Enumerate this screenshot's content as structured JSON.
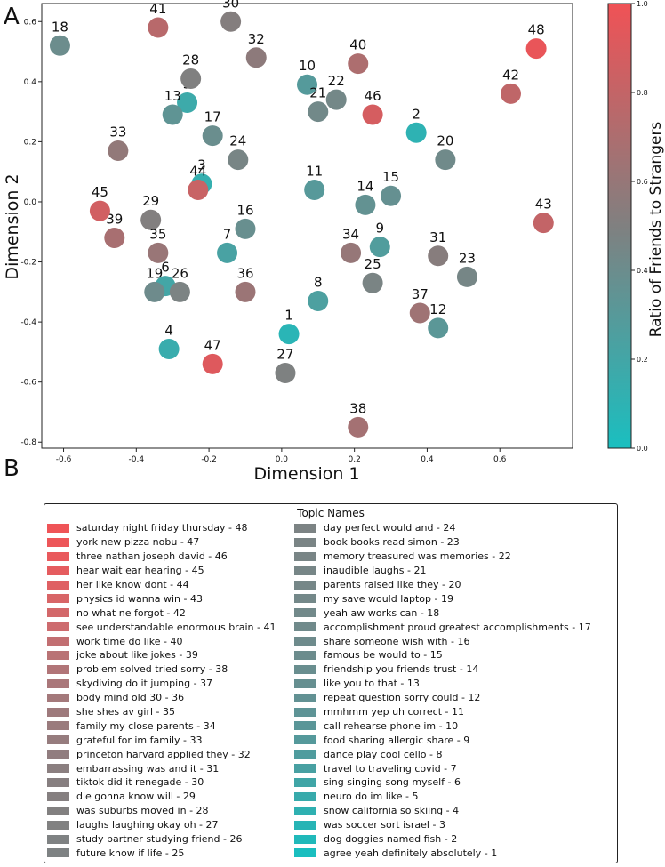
{
  "panel_a_label": "A",
  "panel_b_label": "B",
  "chart_data": {
    "type": "scatter",
    "xlabel": "Dimension 1",
    "ylabel": "Dimension 2",
    "xlim": [
      -0.66,
      0.8
    ],
    "ylim": [
      -0.82,
      0.66
    ],
    "xticks": [
      "-0.6",
      "-0.4",
      "-0.2",
      "0.0",
      "0.2",
      "0.4",
      "0.6"
    ],
    "yticks": [
      "-0.8",
      "-0.6",
      "-0.4",
      "-0.2",
      "0.0",
      "0.2",
      "0.4",
      "0.6"
    ],
    "xtick_values": [
      -0.6,
      -0.4,
      -0.2,
      0.0,
      0.2,
      0.4,
      0.6
    ],
    "ytick_values": [
      -0.8,
      -0.6,
      -0.4,
      -0.2,
      0.0,
      0.2,
      0.4,
      0.6
    ],
    "colorbar": {
      "label": "Ratio of Friends to Strangers",
      "min": 0.0,
      "max": 1.0,
      "ticks": [
        "0.0",
        "0.2",
        "0.4",
        "0.6",
        "0.8",
        "1.0"
      ],
      "tick_values": [
        0.0,
        0.2,
        0.4,
        0.6,
        0.8,
        1.0
      ],
      "low_color": "#1abfc0",
      "mid_color": "#808080",
      "high_color": "#f05256"
    },
    "points": [
      {
        "id": "1",
        "x": 0.02,
        "y": -0.44,
        "ratio": 0.08
      },
      {
        "id": "2",
        "x": 0.37,
        "y": 0.23,
        "ratio": 0.1
      },
      {
        "id": "3",
        "x": -0.22,
        "y": 0.06,
        "ratio": 0.13
      },
      {
        "id": "4",
        "x": -0.31,
        "y": -0.49,
        "ratio": 0.15
      },
      {
        "id": "5",
        "x": -0.26,
        "y": 0.33,
        "ratio": 0.17
      },
      {
        "id": "6",
        "x": -0.32,
        "y": -0.28,
        "ratio": 0.2
      },
      {
        "id": "7",
        "x": -0.15,
        "y": -0.17,
        "ratio": 0.23
      },
      {
        "id": "8",
        "x": 0.1,
        "y": -0.33,
        "ratio": 0.25
      },
      {
        "id": "9",
        "x": 0.27,
        "y": -0.15,
        "ratio": 0.27
      },
      {
        "id": "10",
        "x": 0.07,
        "y": 0.39,
        "ratio": 0.29
      },
      {
        "id": "11",
        "x": 0.09,
        "y": 0.04,
        "ratio": 0.3
      },
      {
        "id": "12",
        "x": 0.43,
        "y": -0.42,
        "ratio": 0.32
      },
      {
        "id": "13",
        "x": -0.3,
        "y": 0.29,
        "ratio": 0.34
      },
      {
        "id": "14",
        "x": 0.23,
        "y": -0.01,
        "ratio": 0.36
      },
      {
        "id": "15",
        "x": 0.3,
        "y": 0.02,
        "ratio": 0.37
      },
      {
        "id": "16",
        "x": -0.1,
        "y": -0.09,
        "ratio": 0.38
      },
      {
        "id": "17",
        "x": -0.19,
        "y": 0.22,
        "ratio": 0.39
      },
      {
        "id": "18",
        "x": -0.61,
        "y": 0.52,
        "ratio": 0.4
      },
      {
        "id": "19",
        "x": -0.35,
        "y": -0.3,
        "ratio": 0.41
      },
      {
        "id": "20",
        "x": 0.45,
        "y": 0.14,
        "ratio": 0.42
      },
      {
        "id": "21",
        "x": 0.1,
        "y": 0.3,
        "ratio": 0.43
      },
      {
        "id": "22",
        "x": 0.15,
        "y": 0.34,
        "ratio": 0.44
      },
      {
        "id": "23",
        "x": 0.51,
        "y": -0.25,
        "ratio": 0.45
      },
      {
        "id": "24",
        "x": -0.12,
        "y": 0.14,
        "ratio": 0.46
      },
      {
        "id": "25",
        "x": 0.25,
        "y": -0.27,
        "ratio": 0.47
      },
      {
        "id": "26",
        "x": -0.28,
        "y": -0.3,
        "ratio": 0.48
      },
      {
        "id": "27",
        "x": 0.01,
        "y": -0.57,
        "ratio": 0.49
      },
      {
        "id": "28",
        "x": -0.25,
        "y": 0.41,
        "ratio": 0.5
      },
      {
        "id": "29",
        "x": -0.36,
        "y": -0.06,
        "ratio": 0.51
      },
      {
        "id": "30",
        "x": -0.14,
        "y": 0.6,
        "ratio": 0.52
      },
      {
        "id": "31",
        "x": 0.43,
        "y": -0.18,
        "ratio": 0.53
      },
      {
        "id": "32",
        "x": -0.07,
        "y": 0.48,
        "ratio": 0.56
      },
      {
        "id": "33",
        "x": -0.45,
        "y": 0.17,
        "ratio": 0.58
      },
      {
        "id": "34",
        "x": 0.19,
        "y": -0.17,
        "ratio": 0.6
      },
      {
        "id": "35",
        "x": -0.34,
        "y": -0.17,
        "ratio": 0.61
      },
      {
        "id": "36",
        "x": -0.1,
        "y": -0.3,
        "ratio": 0.62
      },
      {
        "id": "37",
        "x": 0.38,
        "y": -0.37,
        "ratio": 0.64
      },
      {
        "id": "38",
        "x": 0.21,
        "y": -0.75,
        "ratio": 0.66
      },
      {
        "id": "39",
        "x": -0.46,
        "y": -0.12,
        "ratio": 0.68
      },
      {
        "id": "40",
        "x": 0.21,
        "y": 0.46,
        "ratio": 0.7
      },
      {
        "id": "41",
        "x": -0.34,
        "y": 0.58,
        "ratio": 0.75
      },
      {
        "id": "42",
        "x": 0.63,
        "y": 0.36,
        "ratio": 0.78
      },
      {
        "id": "43",
        "x": 0.72,
        "y": -0.07,
        "ratio": 0.8
      },
      {
        "id": "44",
        "x": -0.23,
        "y": 0.04,
        "ratio": 0.82
      },
      {
        "id": "45",
        "x": -0.5,
        "y": -0.03,
        "ratio": 0.86
      },
      {
        "id": "46",
        "x": 0.25,
        "y": 0.29,
        "ratio": 0.88
      },
      {
        "id": "47",
        "x": -0.19,
        "y": -0.54,
        "ratio": 0.92
      },
      {
        "id": "48",
        "x": 0.7,
        "y": 0.51,
        "ratio": 0.97
      }
    ]
  },
  "legend": {
    "title": "Topic Names",
    "col1": [
      {
        "label": "saturday night friday thursday - 48",
        "color": "#ef5457"
      },
      {
        "label": "york new pizza nobu - 47",
        "color": "#ed5659"
      },
      {
        "label": "three nathan joseph david - 46",
        "color": "#e9595c"
      },
      {
        "label": "hear wait ear hearing - 45",
        "color": "#e55c5f"
      },
      {
        "label": "her like know dont - 44",
        "color": "#df6063"
      },
      {
        "label": "physics id wanna win - 43",
        "color": "#d86567"
      },
      {
        "label": "no what ne forgot - 42",
        "color": "#d3686a"
      },
      {
        "label": "see understandable enormous brain - 41",
        "color": "#cd6b6e"
      },
      {
        "label": "work time do like - 40",
        "color": "#c26f72"
      },
      {
        "label": "joke about like jokes - 39",
        "color": "#b97375"
      },
      {
        "label": "problem solved tried sorry - 38",
        "color": "#b17578"
      },
      {
        "label": "skydiving do it jumping - 37",
        "color": "#aa777a"
      },
      {
        "label": "body mind old 30 - 36",
        "color": "#a4797b"
      },
      {
        "label": "she shes av girl - 35",
        "color": "#9e7a7c"
      },
      {
        "label": "family my close parents - 34",
        "color": "#9a7b7d"
      },
      {
        "label": "grateful for im family - 33",
        "color": "#967c7e"
      },
      {
        "label": "princeton harvard applied they - 32",
        "color": "#917d7f"
      },
      {
        "label": "embarrassing was and it - 31",
        "color": "#8b7f80"
      },
      {
        "label": "tiktok did it renegade - 30",
        "color": "#877f80"
      },
      {
        "label": "die gonna know will - 29",
        "color": "#857f80"
      },
      {
        "label": "was suburbs moved in - 28",
        "color": "#828080"
      },
      {
        "label": "laughs laughing okay oh - 27",
        "color": "#818181"
      },
      {
        "label": "study partner studying friend - 26",
        "color": "#7f8283"
      },
      {
        "label": "future know if life - 25",
        "color": "#7e8283"
      }
    ],
    "col2": [
      {
        "label": "day perfect would and - 24",
        "color": "#7c8384"
      },
      {
        "label": "book books read simon - 23",
        "color": "#7a8485"
      },
      {
        "label": "memory treasured was memories - 22",
        "color": "#798586"
      },
      {
        "label": "inaudible laughs - 21",
        "color": "#778687"
      },
      {
        "label": "parents raised like they - 20",
        "color": "#768788"
      },
      {
        "label": "my save would laptop - 19",
        "color": "#748889"
      },
      {
        "label": "yeah aw works can - 18",
        "color": "#72898a"
      },
      {
        "label": "accomplishment proud greatest accomplishments - 17",
        "color": "#708a8b"
      },
      {
        "label": "share someone wish with - 16",
        "color": "#6e8b8c"
      },
      {
        "label": "famous be would to - 15",
        "color": "#6c8c8d"
      },
      {
        "label": "friendship you friends trust - 14",
        "color": "#698e8f"
      },
      {
        "label": "like you to that - 13",
        "color": "#668f90"
      },
      {
        "label": "repeat question sorry could - 12",
        "color": "#629193"
      },
      {
        "label": "mmhmm yep uh correct - 11",
        "color": "#5e9496"
      },
      {
        "label": "call rehearse phone im - 10",
        "color": "#5a9698"
      },
      {
        "label": "food sharing allergic share - 9",
        "color": "#55999b"
      },
      {
        "label": "dance play cool cello - 8",
        "color": "#4f9c9e"
      },
      {
        "label": "travel to traveling covid - 7",
        "color": "#48a0a2"
      },
      {
        "label": "sing singing song myself - 6",
        "color": "#40a5a6"
      },
      {
        "label": "neuro do im like - 5",
        "color": "#37aaab"
      },
      {
        "label": "snow california so skiing - 4",
        "color": "#2eb0b1"
      },
      {
        "label": "was soccer sort israel - 3",
        "color": "#27b4b5"
      },
      {
        "label": "dog doggies named fish - 2",
        "color": "#20b9ba"
      },
      {
        "label": "agree yeah definitely absolutely - 1",
        "color": "#1abebf"
      }
    ]
  }
}
